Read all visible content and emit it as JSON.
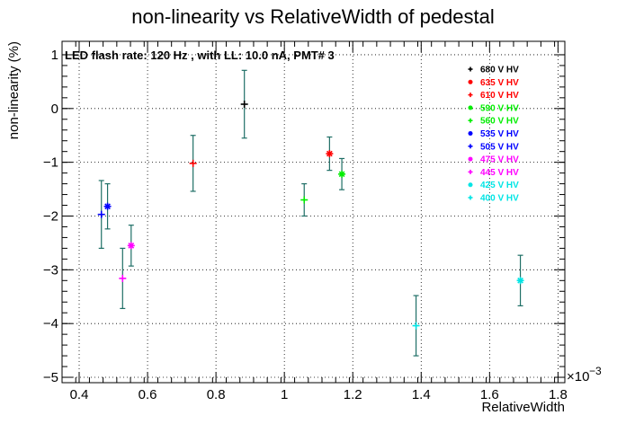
{
  "chart_data": {
    "type": "scatter",
    "title": "non-linearity vs RelativeWidth of pedestal",
    "xlabel": "RelativeWidth",
    "ylabel": "non-linearity (%)",
    "x_exponent_label": "×10",
    "x_exponent_power": "−3",
    "annotation": "LED flash rate: 120 Hz , with LL: 10.0 nA, PMT# 3",
    "xlim": [
      0.35,
      1.82
    ],
    "ylim": [
      -5.1,
      1.25
    ],
    "x_ticks": [
      0.4,
      0.6,
      0.8,
      1.0,
      1.2,
      1.4,
      1.6,
      1.8
    ],
    "x_tick_labels": [
      "0.4",
      "0.6",
      "0.8",
      "1",
      "1.2",
      "1.4",
      "1.6",
      "1.8"
    ],
    "y_ticks": [
      1,
      0,
      -1,
      -2,
      -3,
      -4,
      -5
    ],
    "y_tick_labels": [
      "1",
      "0",
      "−1",
      "−2",
      "−3",
      "−4",
      "−5"
    ],
    "grid": true,
    "legend_position": "top-right",
    "series": [
      {
        "name": "680 V HV",
        "color": "#000000",
        "marker": "plus",
        "x": 0.883,
        "y": 0.08,
        "err": 0.63
      },
      {
        "name": "635 V HV",
        "color": "#ff0000",
        "marker": "star",
        "x": 1.132,
        "y": -0.84,
        "err": 0.31
      },
      {
        "name": "610 V HV",
        "color": "#ff0000",
        "marker": "plus",
        "x": 0.733,
        "y": -1.02,
        "err": 0.52
      },
      {
        "name": "590 V HV",
        "color": "#00ee00",
        "marker": "star",
        "x": 1.168,
        "y": -1.22,
        "err": 0.29
      },
      {
        "name": "560 V HV",
        "color": "#00ee00",
        "marker": "plus",
        "x": 1.058,
        "y": -1.7,
        "err": 0.3
      },
      {
        "name": "535 V HV",
        "color": "#0000ff",
        "marker": "star",
        "x": 0.483,
        "y": -1.82,
        "err": 0.42
      },
      {
        "name": "505 V HV",
        "color": "#0000ff",
        "marker": "plus",
        "x": 0.465,
        "y": -1.97,
        "err": 0.63
      },
      {
        "name": "475 V HV",
        "color": "#ff00ff",
        "marker": "star",
        "x": 0.552,
        "y": -2.55,
        "err": 0.38
      },
      {
        "name": "445 V HV",
        "color": "#ff00ff",
        "marker": "plus",
        "x": 0.527,
        "y": -3.16,
        "err": 0.56
      },
      {
        "name": "425 V HV",
        "color": "#00e5e5",
        "marker": "star",
        "x": 1.69,
        "y": -3.2,
        "err": 0.47
      },
      {
        "name": "400 V HV",
        "color": "#00e5e5",
        "marker": "plus",
        "x": 1.385,
        "y": -4.04,
        "err": 0.56
      }
    ]
  }
}
